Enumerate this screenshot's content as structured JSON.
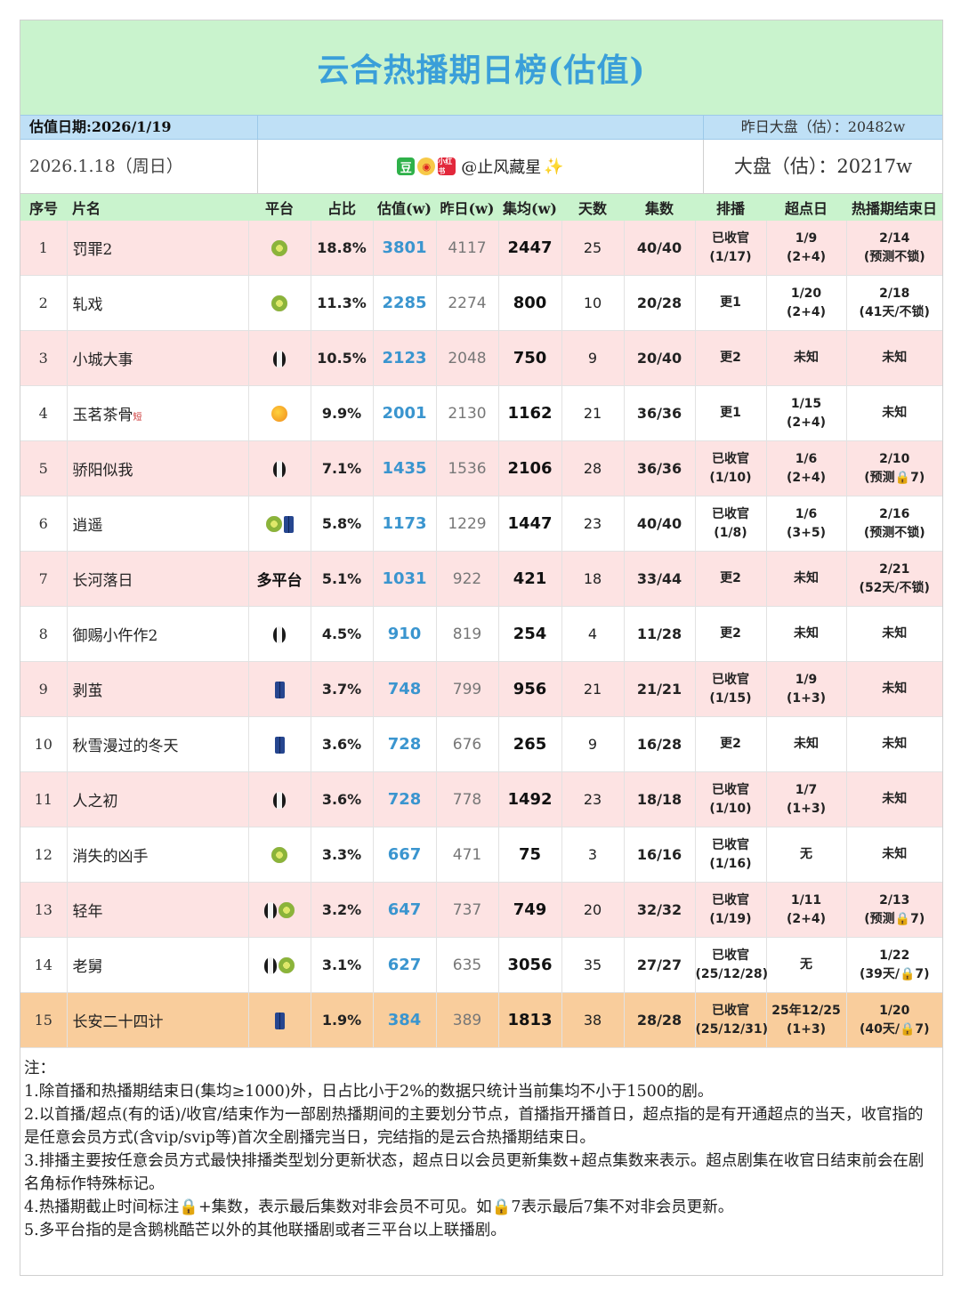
{
  "title": "云合热播期日榜(估值)",
  "info": {
    "date_label": "估值日期:2026/1/19",
    "yesterday_market": "昨日大盘（估）：20482w",
    "day_label": "2026.1.18（周日）",
    "social_icons": [
      "豆",
      "微博",
      "小红书"
    ],
    "handle": "@止风藏星",
    "sparkle": "✨",
    "market": "大盘（估）：20217w"
  },
  "table": {
    "headers": [
      "序号",
      "片名",
      "平台",
      "占比",
      "估值(w)",
      "昨日(w)",
      "集均(w)",
      "天数",
      "集数",
      "排播",
      "超点日",
      "热播期结束日"
    ],
    "rows": [
      {
        "rank": "1",
        "name": "罚罪2",
        "badge": "",
        "platforms": [
          "kiwi"
        ],
        "platform_text": "",
        "share": "18.8%",
        "est": "3801",
        "yday": "4117",
        "avg": "2447",
        "days": "25",
        "eps": "40/40",
        "sched": [
          "已收官",
          "(1/17)"
        ],
        "peak": [
          "1/9",
          "(2+4)"
        ],
        "end": [
          "2/14",
          "(预测不锁)"
        ],
        "style": "pink"
      },
      {
        "rank": "2",
        "name": "轧戏",
        "badge": "",
        "platforms": [
          "kiwi"
        ],
        "platform_text": "",
        "share": "11.3%",
        "est": "2285",
        "yday": "2274",
        "avg": "800",
        "days": "10",
        "eps": "20/28",
        "sched": [
          "更1"
        ],
        "peak": [
          "1/20",
          "(2+4)"
        ],
        "end": [
          "2/18",
          "(41天/不锁)"
        ],
        "style": "white"
      },
      {
        "rank": "3",
        "name": "小城大事",
        "badge": "",
        "platforms": [
          "penguin"
        ],
        "platform_text": "",
        "share": "10.5%",
        "est": "2123",
        "yday": "2048",
        "avg": "750",
        "days": "9",
        "eps": "20/40",
        "sched": [
          "更2"
        ],
        "peak": [
          "未知"
        ],
        "end": [
          "未知"
        ],
        "style": "pink"
      },
      {
        "rank": "4",
        "name": "玉茗茶骨",
        "badge": "短",
        "platforms": [
          "mango"
        ],
        "platform_text": "",
        "share": "9.9%",
        "est": "2001",
        "yday": "2130",
        "avg": "1162",
        "days": "21",
        "eps": "36/36",
        "sched": [
          "更1"
        ],
        "peak": [
          "1/15",
          "(2+4)"
        ],
        "end": [
          "未知"
        ],
        "style": "white"
      },
      {
        "rank": "5",
        "name": "骄阳似我",
        "badge": "",
        "platforms": [
          "penguin"
        ],
        "platform_text": "",
        "share": "7.1%",
        "est": "1435",
        "yday": "1536",
        "avg": "2106",
        "days": "28",
        "eps": "36/36",
        "sched": [
          "已收官",
          "(1/10)"
        ],
        "peak": [
          "1/6",
          "(2+4)"
        ],
        "end": [
          "2/10",
          "(预测🔒7)"
        ],
        "style": "pink"
      },
      {
        "rank": "6",
        "name": "逍遥",
        "badge": "",
        "platforms": [
          "kiwi",
          "jeans"
        ],
        "platform_text": "",
        "share": "5.8%",
        "est": "1173",
        "yday": "1229",
        "avg": "1447",
        "days": "23",
        "eps": "40/40",
        "sched": [
          "已收官",
          "(1/8)"
        ],
        "peak": [
          "1/6",
          "(3+5)"
        ],
        "end": [
          "2/16",
          "(预测不锁)"
        ],
        "style": "white"
      },
      {
        "rank": "7",
        "name": "长河落日",
        "badge": "",
        "platforms": [],
        "platform_text": "多平台",
        "share": "5.1%",
        "est": "1031",
        "yday": "922",
        "avg": "421",
        "days": "18",
        "eps": "33/44",
        "sched": [
          "更2"
        ],
        "peak": [
          "未知"
        ],
        "end": [
          "2/21",
          "(52天/不锁)"
        ],
        "style": "pink"
      },
      {
        "rank": "8",
        "name": "御赐小仵作2",
        "badge": "",
        "platforms": [
          "penguin"
        ],
        "platform_text": "",
        "share": "4.5%",
        "est": "910",
        "yday": "819",
        "avg": "254",
        "days": "4",
        "eps": "11/28",
        "sched": [
          "更2"
        ],
        "peak": [
          "未知"
        ],
        "end": [
          "未知"
        ],
        "style": "white"
      },
      {
        "rank": "9",
        "name": "剥茧",
        "badge": "",
        "platforms": [
          "jeans"
        ],
        "platform_text": "",
        "share": "3.7%",
        "est": "748",
        "yday": "799",
        "avg": "956",
        "days": "21",
        "eps": "21/21",
        "sched": [
          "已收官",
          "(1/15)"
        ],
        "peak": [
          "1/9",
          "(1+3)"
        ],
        "end": [
          "未知"
        ],
        "style": "pink"
      },
      {
        "rank": "10",
        "name": "秋雪漫过的冬天",
        "badge": "",
        "platforms": [
          "jeans"
        ],
        "platform_text": "",
        "share": "3.6%",
        "est": "728",
        "yday": "676",
        "avg": "265",
        "days": "9",
        "eps": "16/28",
        "sched": [
          "更2"
        ],
        "peak": [
          "未知"
        ],
        "end": [
          "未知"
        ],
        "style": "white"
      },
      {
        "rank": "11",
        "name": "人之初",
        "badge": "",
        "platforms": [
          "penguin"
        ],
        "platform_text": "",
        "share": "3.6%",
        "est": "728",
        "yday": "778",
        "avg": "1492",
        "days": "23",
        "eps": "18/18",
        "sched": [
          "已收官",
          "(1/10)"
        ],
        "peak": [
          "1/7",
          "(1+3)"
        ],
        "end": [
          "未知"
        ],
        "style": "pink"
      },
      {
        "rank": "12",
        "name": "消失的凶手",
        "badge": "",
        "platforms": [
          "kiwi"
        ],
        "platform_text": "",
        "share": "3.3%",
        "est": "667",
        "yday": "471",
        "avg": "75",
        "days": "3",
        "eps": "16/16",
        "sched": [
          "已收官",
          "(1/16)"
        ],
        "peak": [
          "无"
        ],
        "end": [
          "未知"
        ],
        "style": "white"
      },
      {
        "rank": "13",
        "name": "轻年",
        "badge": "",
        "platforms": [
          "penguin",
          "kiwi"
        ],
        "platform_text": "",
        "share": "3.2%",
        "est": "647",
        "yday": "737",
        "avg": "749",
        "days": "20",
        "eps": "32/32",
        "sched": [
          "已收官",
          "(1/19)"
        ],
        "peak": [
          "1/11",
          "(2+4)"
        ],
        "end": [
          "2/13",
          "(预测🔒7)"
        ],
        "style": "pink"
      },
      {
        "rank": "14",
        "name": "老舅",
        "badge": "",
        "platforms": [
          "penguin",
          "kiwi"
        ],
        "platform_text": "",
        "share": "3.1%",
        "est": "627",
        "yday": "635",
        "avg": "3056",
        "days": "35",
        "eps": "27/27",
        "sched": [
          "已收官",
          "(25/12/28)"
        ],
        "peak": [
          "无"
        ],
        "end": [
          "1/22",
          "(39天/🔒7)"
        ],
        "style": "white"
      },
      {
        "rank": "15",
        "name": "长安二十四计",
        "badge": "",
        "platforms": [
          "jeans"
        ],
        "platform_text": "",
        "share": "1.9%",
        "est": "384",
        "yday": "389",
        "avg": "1813",
        "days": "38",
        "eps": "28/28",
        "sched": [
          "已收官",
          "(25/12/31)"
        ],
        "peak": [
          "25年12/25",
          "(1+3)"
        ],
        "end": [
          "1/20",
          "(40天/🔒7)"
        ],
        "style": "orange"
      }
    ]
  },
  "notes": [
    "注：",
    "1.除首播和热播期结束日(集均≥1000)外，日占比小于2%的数据只统计当前集均不小于1500的剧。",
    "2.以首播/超点(有的话)/收官/结束作为一部剧热播期间的主要划分节点，首播指开播首日，超点指的是有开通超点的当天，收官指的是任意会员方式(含vip/svip等)首次全剧播完当日，完结指的是云合热播期结束日。",
    "3.排播主要按任意会员方式最快排播类型划分更新状态，超点日以会员更新集数+超点集数来表示。超点剧集在收官日结束前会在剧名角标作特殊标记。",
    "4.热播期截止时间标注🔒+集数，表示最后集数对非会员不可见。如🔒7表示最后7集不对非会员更新。",
    "5.多平台指的是含鹅桃酷芒以外的其他联播剧或者三平台以上联播剧。"
  ]
}
